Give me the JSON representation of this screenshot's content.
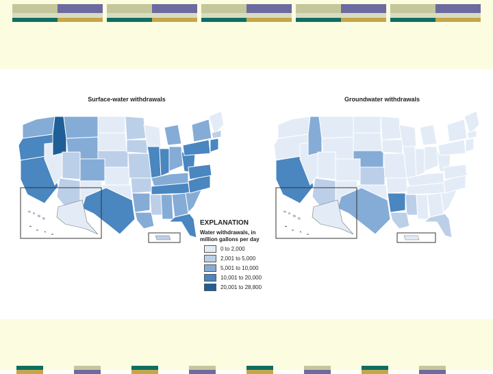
{
  "slide": {
    "colors": {
      "band": "#fcfce0",
      "teal": "#0f6e62",
      "gold": "#c6a64a",
      "purple": "#6d6aa0",
      "sage": "#c3c79b",
      "light_sage": "#d8dcc0"
    }
  },
  "maps": {
    "left": {
      "title": "Surface-water withdrawals"
    },
    "right": {
      "title": "Groundwater withdrawals"
    }
  },
  "legend": {
    "title": "EXPLANATION",
    "subtitle_line1": "Water withdrawals, in",
    "subtitle_line2": "million gallons per day",
    "items": [
      {
        "label": "0 to 2,000",
        "color": "#e3ecf6"
      },
      {
        "label": "2,001 to 5,000",
        "color": "#bccfe8"
      },
      {
        "label": "5,001 to 10,000",
        "color": "#84acd6"
      },
      {
        "label": "10,001 to 20,000",
        "color": "#4a86bf"
      },
      {
        "label": "20,001 to 28,800",
        "color": "#1f5f97"
      }
    ]
  }
}
